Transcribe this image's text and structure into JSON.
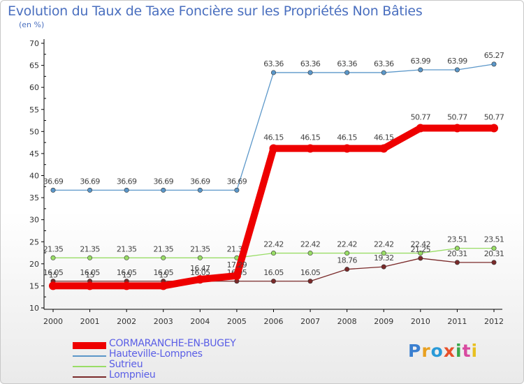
{
  "title": "Evolution du Taux de Taxe Foncière sur les Propriétés Non Bâties",
  "subtitle": "(en %)",
  "brand": "Proxiti",
  "chart_data": {
    "type": "line",
    "x": [
      "2000",
      "2001",
      "2002",
      "2003",
      "2004",
      "2005",
      "2006",
      "2007",
      "2008",
      "2009",
      "2010",
      "2011",
      "2012"
    ],
    "ylim": [
      10,
      70
    ],
    "yticks": [
      "10",
      "15",
      "20",
      "25",
      "30",
      "35",
      "40",
      "45",
      "50",
      "55",
      "60",
      "65",
      "70"
    ],
    "grid": false,
    "legend_position": "bottom-left",
    "series": [
      {
        "name": "CORMARANCHE-EN-BUGEY",
        "color": "#ee0000",
        "values": [
          15,
          15,
          15,
          15,
          16.47,
          17.29,
          46.15,
          46.15,
          46.15,
          46.15,
          50.77,
          50.77,
          50.77
        ],
        "labels": [
          "15",
          "15",
          "15",
          "15",
          "16.47",
          "17.29",
          "46.15",
          "46.15",
          "46.15",
          "46.15",
          "50.77",
          "50.77",
          "50.77"
        ]
      },
      {
        "name": "Hauteville-Lompnes",
        "color": "#5b97c9",
        "values": [
          36.69,
          36.69,
          36.69,
          36.69,
          36.69,
          36.69,
          63.36,
          63.36,
          63.36,
          63.36,
          63.99,
          63.99,
          65.27
        ],
        "labels": [
          "36.69",
          "36.69",
          "36.69",
          "36.69",
          "36.69",
          "36.69",
          "63.36",
          "63.36",
          "63.36",
          "63.36",
          "63.99",
          "63.99",
          "65.27"
        ]
      },
      {
        "name": "Sutrieu",
        "color": "#99dd66",
        "values": [
          21.35,
          21.35,
          21.35,
          21.35,
          21.35,
          21.35,
          22.42,
          22.42,
          22.42,
          22.42,
          22.42,
          23.51,
          23.51
        ],
        "labels": [
          "21.35",
          "21.35",
          "21.35",
          "21.35",
          "21.35",
          "21.35",
          "22.42",
          "22.42",
          "22.42",
          "22.42",
          "22.42",
          "23.51",
          "23.51"
        ]
      },
      {
        "name": "Lompnieu",
        "color": "#7a2a2a",
        "values": [
          16.05,
          16.05,
          16.05,
          16.05,
          16.05,
          16.05,
          16.05,
          16.05,
          18.76,
          19.32,
          21.25,
          20.31,
          20.31
        ],
        "labels": [
          "16.05",
          "16.05",
          "16.05",
          "16.05",
          "16.05",
          "16.05",
          "16.05",
          "16.05",
          "18.76",
          "19.32",
          "21.25",
          "20.31",
          "20.31"
        ]
      }
    ]
  }
}
